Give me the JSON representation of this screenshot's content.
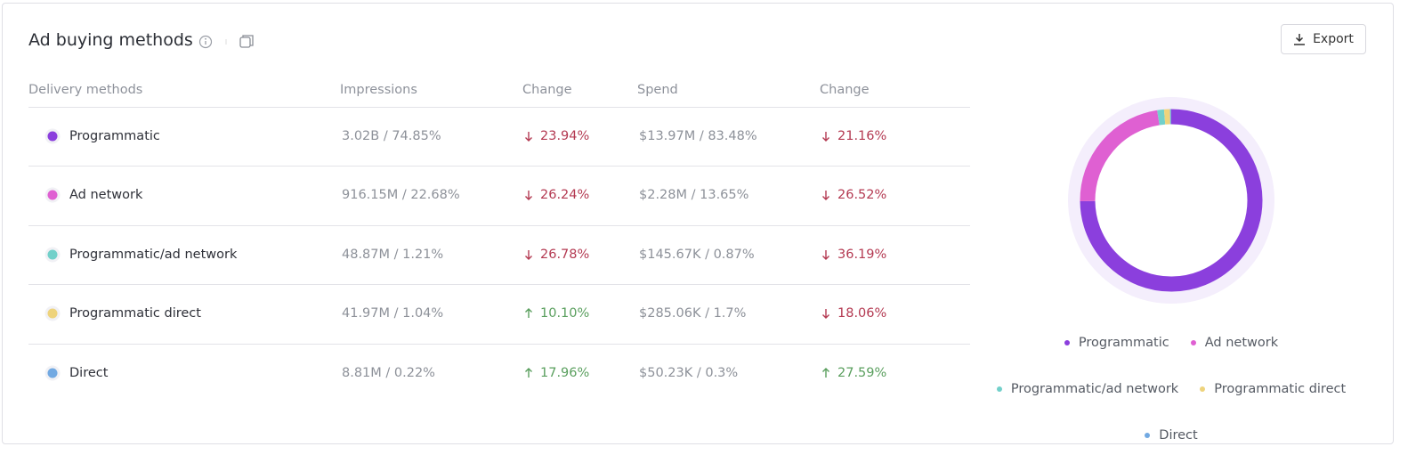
{
  "header": {
    "title": "Ad buying methods",
    "export": "Export"
  },
  "table": {
    "columns": [
      "Delivery methods",
      "Impressions",
      "Change",
      "Spend",
      "Change"
    ],
    "rows": [
      [
        "Programmatic",
        "3.02B / 74.85%",
        {
          "direction": "down",
          "text": "23.94%"
        },
        "$13.97M / 83.48%",
        {
          "direction": "down",
          "text": "21.16%"
        }
      ],
      [
        "Ad network",
        "916.15M / 22.68%",
        {
          "direction": "down",
          "text": "26.24%"
        },
        "$2.28M / 13.65%",
        {
          "direction": "down",
          "text": "26.52%"
        }
      ],
      [
        "Programmatic/ad network",
        "48.87M / 1.21%",
        {
          "direction": "down",
          "text": "26.78%"
        },
        "$145.67K / 0.87%",
        {
          "direction": "down",
          "text": "36.19%"
        }
      ],
      [
        "Programmatic direct",
        "41.97M / 1.04%",
        {
          "direction": "up",
          "text": "10.10%"
        },
        "$285.06K / 1.7%",
        {
          "direction": "down",
          "text": "18.06%"
        }
      ],
      [
        "Direct",
        "8.81M / 0.22%",
        {
          "direction": "up",
          "text": "17.96%"
        },
        "$50.23K / 0.3%",
        {
          "direction": "up",
          "text": "27.59%"
        }
      ]
    ]
  },
  "chart_data": {
    "type": "donut",
    "categories": [
      "Programmatic",
      "Ad network",
      "Programmatic/ad network",
      "Programmatic direct",
      "Direct"
    ],
    "values": [
      74.85,
      22.68,
      1.21,
      1.04,
      0.22
    ],
    "colors": [
      "#8b3fdd",
      "#df60d2",
      "#72d0ca",
      "#eed37c",
      "#72a9e2"
    ]
  }
}
